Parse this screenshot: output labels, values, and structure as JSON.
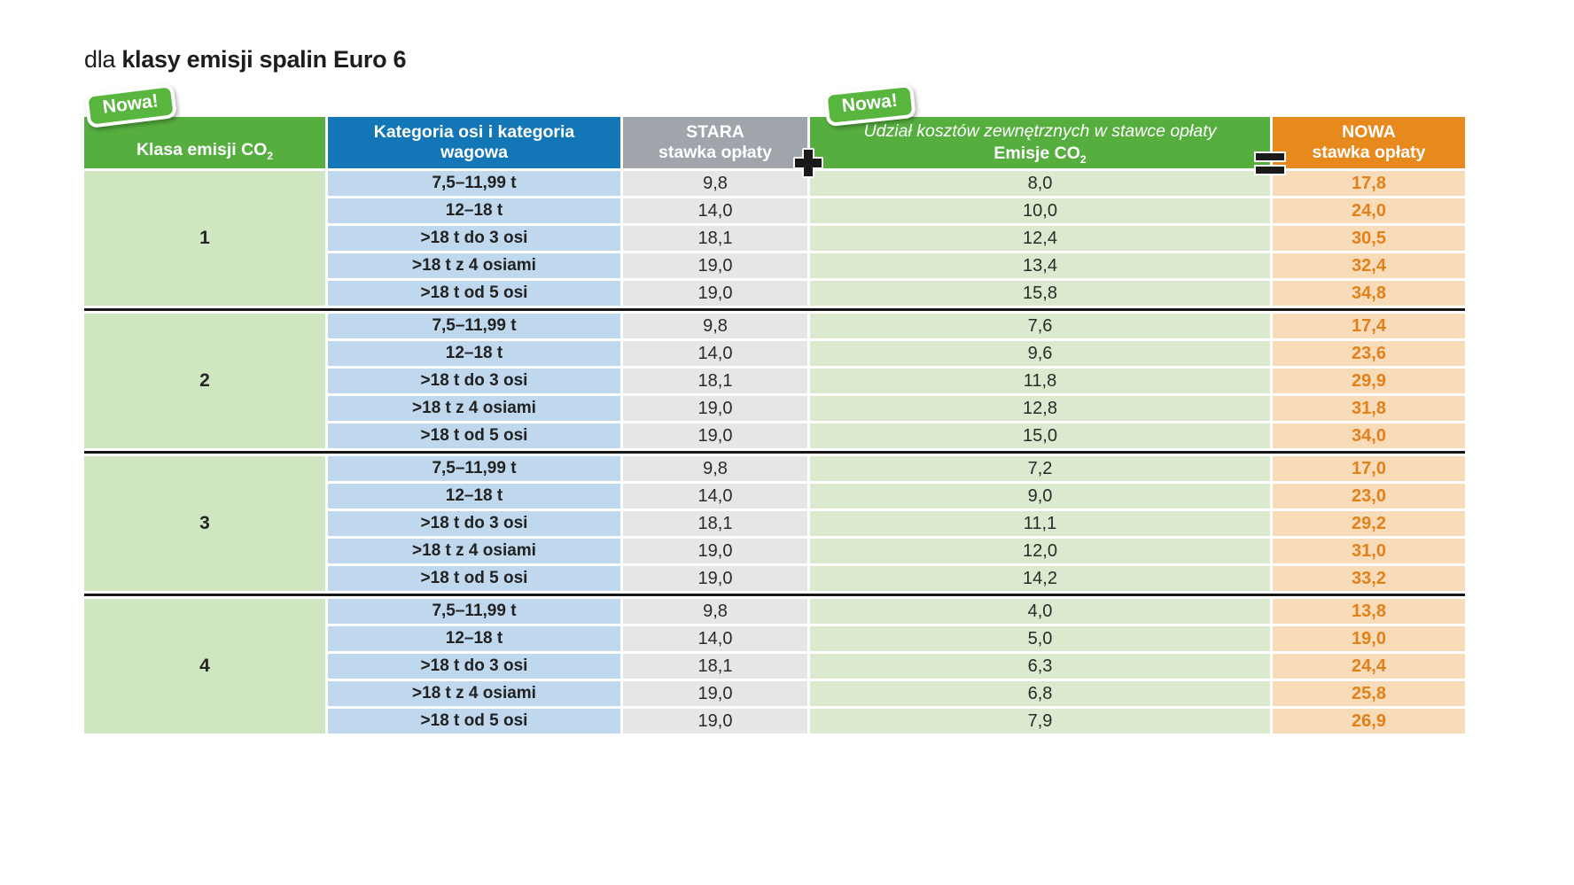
{
  "title": {
    "prefix": "dla",
    "emphasis": "klasy emisji spalin Euro 6"
  },
  "badges": {
    "left": "Nowa!",
    "middle": "Nowa!"
  },
  "header": {
    "class_line": "Klasa emisji CO",
    "class_sub": "2",
    "category": "Kategoria osi i kategoria wagowa",
    "old_line1": "STARA",
    "old_line2": "stawka opłaty",
    "plus_symbol": "+",
    "ext_subtitle": "Udział kosztów zewnętrznych w stawce opłaty",
    "ext_line": "Emisje CO",
    "ext_sub": "2",
    "equals_symbol": "=",
    "new_line1": "NOWA",
    "new_line2": "stawka opłaty"
  },
  "colors": {
    "header_green": "#56ae3f",
    "header_blue": "#1377b7",
    "header_gray": "#9fa5aa",
    "header_orange": "#e8891d",
    "cell_light_green_class": "#cfe6c0",
    "cell_light_blue": "#bfd8ed",
    "cell_light_gray": "#e4e6e8",
    "cell_light_green_emissions": "#dbeacf",
    "cell_light_orange": "#f8dcba",
    "new_rate_text": "#e2801a",
    "badge_green": "#58b53e",
    "divider_black": "#161616"
  },
  "chart_data": {
    "type": "table",
    "title": "dla klasy emisji spalin Euro 6",
    "columns": [
      "Klasa emisji CO2",
      "Kategoria osi i kategoria wagowa",
      "STARA stawka opłaty",
      "Udział kosztów zewnętrznych w stawce opłaty (Emisje CO2)",
      "NOWA stawka opłaty"
    ],
    "relation": "STARA stawka opłaty + Emisje CO2 = NOWA stawka opłaty",
    "groups": [
      {
        "class": "1",
        "rows": [
          {
            "category": "7,5–11,99 t",
            "stara": "9,8",
            "emisje": "8,0",
            "nowa": "17,8"
          },
          {
            "category": "12–18 t",
            "stara": "14,0",
            "emisje": "10,0",
            "nowa": "24,0"
          },
          {
            "category": ">18 t do 3 osi",
            "stara": "18,1",
            "emisje": "12,4",
            "nowa": "30,5"
          },
          {
            "category": ">18 t z 4 osiami",
            "stara": "19,0",
            "emisje": "13,4",
            "nowa": "32,4"
          },
          {
            "category": ">18 t od 5 osi",
            "stara": "19,0",
            "emisje": "15,8",
            "nowa": "34,8"
          }
        ]
      },
      {
        "class": "2",
        "rows": [
          {
            "category": "7,5–11,99 t",
            "stara": "9,8",
            "emisje": "7,6",
            "nowa": "17,4"
          },
          {
            "category": "12–18 t",
            "stara": "14,0",
            "emisje": "9,6",
            "nowa": "23,6"
          },
          {
            "category": ">18 t do 3 osi",
            "stara": "18,1",
            "emisje": "11,8",
            "nowa": "29,9"
          },
          {
            "category": ">18 t z 4 osiami",
            "stara": "19,0",
            "emisje": "12,8",
            "nowa": "31,8"
          },
          {
            "category": ">18 t od 5 osi",
            "stara": "19,0",
            "emisje": "15,0",
            "nowa": "34,0"
          }
        ]
      },
      {
        "class": "3",
        "rows": [
          {
            "category": "7,5–11,99 t",
            "stara": "9,8",
            "emisje": "7,2",
            "nowa": "17,0"
          },
          {
            "category": "12–18 t",
            "stara": "14,0",
            "emisje": "9,0",
            "nowa": "23,0"
          },
          {
            "category": ">18 t do 3 osi",
            "stara": "18,1",
            "emisje": "11,1",
            "nowa": "29,2"
          },
          {
            "category": ">18 t z 4 osiami",
            "stara": "19,0",
            "emisje": "12,0",
            "nowa": "31,0"
          },
          {
            "category": ">18 t od 5 osi",
            "stara": "19,0",
            "emisje": "14,2",
            "nowa": "33,2"
          }
        ]
      },
      {
        "class": "4",
        "rows": [
          {
            "category": "7,5–11,99 t",
            "stara": "9,8",
            "emisje": "4,0",
            "nowa": "13,8"
          },
          {
            "category": "12–18 t",
            "stara": "14,0",
            "emisje": "5,0",
            "nowa": "19,0"
          },
          {
            "category": ">18 t do 3 osi",
            "stara": "18,1",
            "emisje": "6,3",
            "nowa": "24,4"
          },
          {
            "category": ">18 t z 4 osiami",
            "stara": "19,0",
            "emisje": "6,8",
            "nowa": "25,8"
          },
          {
            "category": ">18 t od 5 osi",
            "stara": "19,0",
            "emisje": "7,9",
            "nowa": "26,9"
          }
        ]
      }
    ]
  }
}
